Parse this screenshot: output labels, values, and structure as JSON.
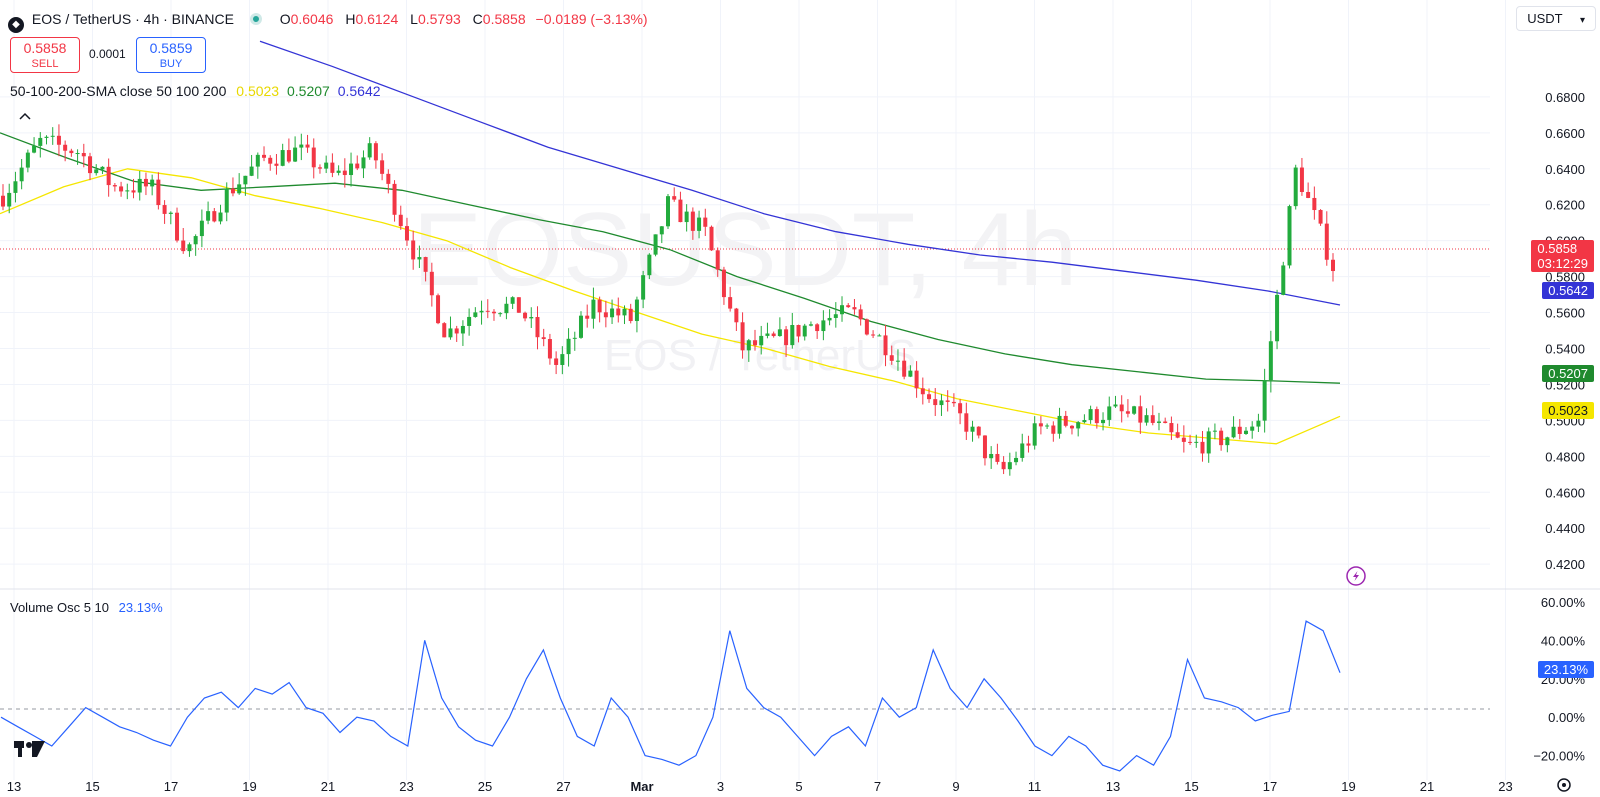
{
  "header": {
    "symbol_title": "EOS / TetherUS · 4h · BINANCE",
    "ohlc": {
      "o_label": "O",
      "o_value": "0.6046",
      "h_label": "H",
      "h_value": "0.6124",
      "l_label": "L",
      "l_value": "0.5793",
      "c_label": "C",
      "c_value": "0.5858",
      "change": "−0.0189 (−3.13%)"
    }
  },
  "trade": {
    "sell_price": "0.5858",
    "sell_label": "SELL",
    "spread": "0.0001",
    "buy_price": "0.5859",
    "buy_label": "BUY"
  },
  "indicator": {
    "name": "50-100-200-SMA close 50 100 200",
    "sma50": "0.5023",
    "sma100": "0.5207",
    "sma200": "0.5642"
  },
  "oscillator": {
    "name": "Volume Osc 5 10",
    "value": "23.13%"
  },
  "currency_button": "USDT",
  "watermark": {
    "big": "EOSUSDT, 4h",
    "small": "EOS / TetherUS"
  },
  "price_tags": {
    "last_price": "0.5858",
    "countdown": "03:12:29",
    "sma200": "0.5642",
    "sma100": "0.5207",
    "sma50": "0.5023",
    "osc": "23.13%"
  },
  "colors": {
    "up": "#22ab3d",
    "down": "#f23645",
    "sma50": "#f5e600",
    "sma100": "#1f8a2e",
    "sma200": "#3434d6",
    "osc": "#2962ff"
  },
  "logo": "tradingview-logo",
  "chart_data": [
    {
      "type": "candlestick",
      "title": "EOS / TetherUS · 4h · BINANCE",
      "x_tick_labels": [
        "13",
        "15",
        "17",
        "19",
        "21",
        "23",
        "25",
        "27",
        "Mar",
        "3",
        "5",
        "7",
        "9",
        "11",
        "13",
        "15",
        "17",
        "19",
        "21",
        "23"
      ],
      "y_tick_labels": [
        "0.6800",
        "0.6600",
        "0.6400",
        "0.6200",
        "0.6000",
        "0.5800",
        "0.5600",
        "0.5400",
        "0.5200",
        "0.5000",
        "0.4800",
        "0.4600",
        "0.4400",
        "0.4200"
      ],
      "ylim": [
        0.4112,
        0.7072
      ],
      "close_path_hint": [
        [
          "2024-02-13T00",
          0.625
        ],
        [
          "2024-02-14T00",
          0.655
        ],
        [
          "2024-02-15T00",
          0.65
        ],
        [
          "2024-02-16T00",
          0.63
        ],
        [
          "2024-02-17T00",
          0.63
        ],
        [
          "2024-02-18T00",
          0.595
        ],
        [
          "2024-02-19T00",
          0.625
        ],
        [
          "2024-02-20T00",
          0.645
        ],
        [
          "2024-02-21T00",
          0.65
        ],
        [
          "2024-02-22T00",
          0.635
        ],
        [
          "2024-02-23T00",
          0.65
        ],
        [
          "2024-02-24T00",
          0.6
        ],
        [
          "2024-02-25T00",
          0.548
        ],
        [
          "2024-02-26T00",
          0.565
        ],
        [
          "2024-02-27T00",
          0.562
        ],
        [
          "2024-02-28T00",
          0.53
        ],
        [
          "2024-02-29T00",
          0.565
        ],
        [
          "2024-03-01T00",
          0.556
        ],
        [
          "2024-03-02T00",
          0.62
        ],
        [
          "2024-03-03T00",
          0.605
        ],
        [
          "2024-03-04T00",
          0.54
        ],
        [
          "2024-03-05T00",
          0.545
        ],
        [
          "2024-03-06T00",
          0.555
        ],
        [
          "2024-03-07T00",
          0.56
        ],
        [
          "2024-03-08T00",
          0.54
        ],
        [
          "2024-03-09T00",
          0.515
        ],
        [
          "2024-03-10T00",
          0.5
        ],
        [
          "2024-03-11T00",
          0.47
        ],
        [
          "2024-03-12T00",
          0.495
        ],
        [
          "2024-03-13T00",
          0.5
        ],
        [
          "2024-03-14T00",
          0.505
        ],
        [
          "2024-03-15T00",
          0.5
        ],
        [
          "2024-03-16T00",
          0.485
        ],
        [
          "2024-03-17T00",
          0.49
        ],
        [
          "2024-03-18T00",
          0.5
        ],
        [
          "2024-03-19T00",
          0.64
        ],
        [
          "2024-03-19T08",
          0.5858
        ]
      ],
      "series": [
        {
          "name": "50",
          "last": 0.5023,
          "values": [
            [
              0.615,
              0.63,
              0.64,
              0.635,
              0.625,
              0.618,
              0.61,
              0.6,
              0.585,
              0.572,
              0.56,
              0.548,
              0.54,
              0.53,
              0.522,
              0.512,
              0.505,
              0.498,
              0.493,
              0.49,
              0.487,
              0.5023
            ]
          ]
        },
        {
          "name": "100",
          "last": 0.5207,
          "values": [
            [
              0.66,
              0.646,
              0.633,
              0.628,
              0.63,
              0.632,
              0.628,
              0.62,
              0.612,
              0.605,
              0.595,
              0.58,
              0.568,
              0.555,
              0.545,
              0.537,
              0.531,
              0.527,
              0.523,
              0.522,
              0.5207
            ]
          ]
        },
        {
          "name": "200",
          "last": 0.5642,
          "values": [
            [
              0.711,
              0.697,
              0.682,
              0.667,
              0.652,
              0.64,
              0.628,
              0.615,
              0.605,
              0.598,
              0.592,
              0.588,
              0.583,
              0.578,
              0.572,
              0.5642
            ]
          ]
        }
      ]
    },
    {
      "type": "line",
      "title": "Volume Osc 5 10",
      "y_tick_labels": [
        "60.00%",
        "40.00%",
        "20.00%",
        "0.00%",
        "−20.00%"
      ],
      "ylim": [
        -27.5,
        63.6
      ],
      "series": [
        {
          "name": "Volume Osc 5 10",
          "values": [
            0,
            -5,
            -10,
            -15,
            -5,
            5,
            0,
            -5,
            -8,
            -12,
            -15,
            0,
            10,
            13,
            5,
            15,
            12,
            18,
            5,
            2,
            -8,
            0,
            -2,
            -10,
            -15,
            40,
            10,
            -5,
            -12,
            -15,
            0,
            20,
            35,
            10,
            -10,
            -15,
            10,
            0,
            -20,
            -22,
            -25,
            -20,
            0,
            45,
            15,
            5,
            0,
            -10,
            -20,
            -10,
            -5,
            -15,
            10,
            0,
            5,
            35,
            15,
            5,
            20,
            10,
            -2,
            -15,
            -20,
            -10,
            -15,
            -25,
            -28,
            -20,
            -25,
            -10,
            30,
            10,
            8,
            5,
            -2,
            1,
            3,
            50,
            45,
            23.13
          ]
        }
      ]
    }
  ]
}
